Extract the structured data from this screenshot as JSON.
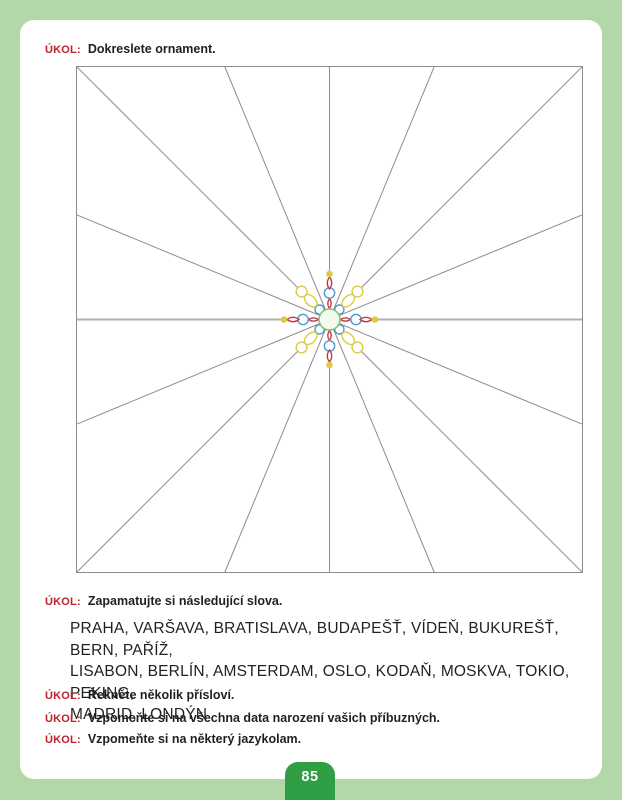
{
  "page": {
    "background_color": "#b3d7a6",
    "sheet_color": "#ffffff",
    "page_number": "85",
    "badge_color": "#2f9e44"
  },
  "tasks": [
    {
      "label": "ÚKOL:",
      "text": "Dokreslete ornament."
    },
    {
      "label": "ÚKOL:",
      "text": "Zapamatujte si následující slova."
    },
    {
      "label": "ÚKOL:",
      "text": "Řekněte několik přísloví."
    },
    {
      "label": "ÚKOL:",
      "text": "Vzpomeňte si na všechna data narození vašich příbuzných."
    },
    {
      "label": "ÚKOL:",
      "text": "Vzpomeňte si na některý jazykolam."
    }
  ],
  "word_list": {
    "lines": [
      "PRAHA, VARŠAVA, BRATISLAVA, BUDAPEŠŤ, VÍDEŇ, BUKUREŠŤ, BERN, PAŘÍŽ,",
      "LISABON, BERLÍN, AMSTERDAM, OSLO, KODAŇ, MOSKVA, TOKIO, PEKING,",
      "MADRID, LONDÝN"
    ]
  },
  "ornament_figure": {
    "rays": 16,
    "colors": {
      "line": "#8c8c8c",
      "horizontal_line": "#b0b0b0",
      "border": "#8c8c8c",
      "red": "#c53a44",
      "blue": "#4b9cd3",
      "yellow": "#ddca45",
      "green": "#7fc47c",
      "center_fill": "#f3faf0"
    }
  }
}
